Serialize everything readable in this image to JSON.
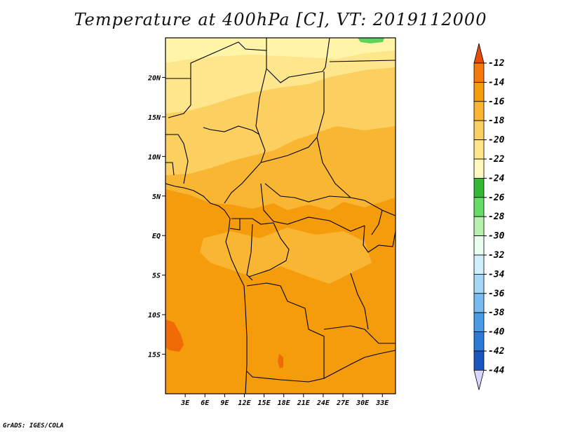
{
  "title": "Temperature at 400hPa [C], VT: 2019112000",
  "credit": "GrADS: IGES/COLA",
  "map": {
    "lon_range": [
      0,
      35
    ],
    "lat_range": [
      -20,
      25
    ],
    "lat_ticks": [
      {
        "value": 20,
        "label": "20N"
      },
      {
        "value": 15,
        "label": "15N"
      },
      {
        "value": 10,
        "label": "10N"
      },
      {
        "value": 5,
        "label": "5N"
      },
      {
        "value": 0,
        "label": "EQ"
      },
      {
        "value": -5,
        "label": "5S"
      },
      {
        "value": -10,
        "label": "10S"
      },
      {
        "value": -15,
        "label": "15S"
      }
    ],
    "lon_ticks": [
      {
        "value": 3,
        "label": "3E"
      },
      {
        "value": 6,
        "label": "6E"
      },
      {
        "value": 9,
        "label": "9E"
      },
      {
        "value": 12,
        "label": "12E"
      },
      {
        "value": 15,
        "label": "15E"
      },
      {
        "value": 18,
        "label": "18E"
      },
      {
        "value": 21,
        "label": "21E"
      },
      {
        "value": 24,
        "label": "24E"
      },
      {
        "value": 27,
        "label": "27E"
      },
      {
        "value": 30,
        "label": "30E"
      },
      {
        "value": 33,
        "label": "33E"
      }
    ],
    "field_colors": {
      "c_22": "#fff4a8",
      "c_20": "#fde68c",
      "c_18": "#fbd060",
      "c_16": "#f9b632",
      "c_14": "#f59c0c",
      "c_12": "#f06a06",
      "c_24": "#5ed45e"
    }
  },
  "colorbar": {
    "labels": [
      "-12",
      "-14",
      "-16",
      "-18",
      "-20",
      "-22",
      "-24",
      "-26",
      "-28",
      "-30",
      "-32",
      "-34",
      "-36",
      "-38",
      "-40",
      "-42",
      "-44"
    ],
    "colors": [
      "#e84a0a",
      "#f57a0a",
      "#f59c0c",
      "#f9b632",
      "#fbd060",
      "#fde68c",
      "#fff7bb",
      "#35b835",
      "#66dc66",
      "#b8f0b0",
      "#e8fff0",
      "#d0eefc",
      "#a6d6f6",
      "#78bcf0",
      "#489ce6",
      "#2c7ad8",
      "#1a56c0",
      "#0e2fa0",
      "#0c1878",
      "#d8d8ff"
    ]
  }
}
